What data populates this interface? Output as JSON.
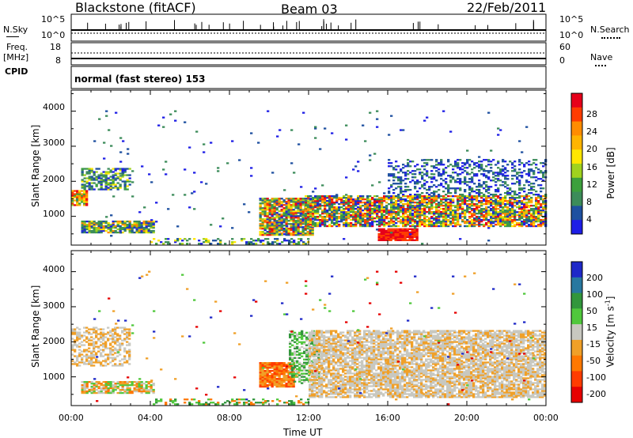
{
  "header": {
    "station": "Blackstone (fitACF)",
    "beam": "Beam 03",
    "date": "22/Feb/2011"
  },
  "summary_panels": {
    "nsky_label": "N.Sky",
    "nsky_ticks": [
      "10^5",
      "10^0"
    ],
    "nsearch_label": "N.Search",
    "nsearch_ticks": [
      "10^5",
      "10^0"
    ],
    "freq_label_top": "Freq.",
    "freq_label_bottom": "[MHz]",
    "freq_ticks": [
      "18",
      "8"
    ],
    "nave_label": "Nave",
    "nave_ticks": [
      "60",
      "0"
    ],
    "cpid_label": "CPID",
    "cpid_text": "normal (fast stereo) 153"
  },
  "power_colorbar": {
    "title": "Power [dB]",
    "labels": [
      "28",
      "24",
      "20",
      "16",
      "12",
      "8",
      "4"
    ],
    "colors": [
      "#e6001a",
      "#ff3c00",
      "#ff8c00",
      "#ffb400",
      "#ffe600",
      "#a0d21e",
      "#3ca03c",
      "#3c8c5a",
      "#1e50a0",
      "#1e1ee6"
    ]
  },
  "velocity_colorbar": {
    "title": "Velocity [m s",
    "title_sup": "-1",
    "title_end": "]",
    "labels": [
      "200",
      "100",
      "50",
      "15",
      "-15",
      "-50",
      "-100",
      "-200"
    ],
    "colors": [
      "#1e28c8",
      "#2878a0",
      "#32963c",
      "#50c83c",
      "#c8c8c0",
      "#f0a028",
      "#ff7800",
      "#ff3c00",
      "#e60000"
    ]
  },
  "chart_data": {
    "type": "heatmap",
    "title": "Blackstone (fitACF) Beam 03 22/Feb/2011",
    "xlabel": "Time UT",
    "ylabel": "Slant Range [km]",
    "xlim": [
      0,
      24
    ],
    "ylim": [
      180,
      4600
    ],
    "x_ticks": [
      "00:00",
      "04:00",
      "08:00",
      "12:00",
      "16:00",
      "20:00",
      "00:00"
    ],
    "y_ticks": [
      "1000",
      "2000",
      "3000",
      "4000"
    ],
    "panels": [
      {
        "name": "Power",
        "units": "dB",
        "regions": [
          {
            "t": [
              0.0,
              0.8
            ],
            "range": [
              1300,
              1750
            ],
            "value": "strong 16-28 dB"
          },
          {
            "t": [
              0.5,
              3.0
            ],
            "range": [
              1750,
              2350
            ],
            "value": "4-16 dB"
          },
          {
            "t": [
              0.5,
              4.2
            ],
            "range": [
              520,
              850
            ],
            "value": "4-24 dB"
          },
          {
            "t": [
              9.5,
              12.2
            ],
            "range": [
              450,
              1500
            ],
            "value": "8-24 dB"
          },
          {
            "t": [
              11.8,
              24.0
            ],
            "range": [
              700,
              1600
            ],
            "value": "16-28 dB band"
          },
          {
            "t": [
              15.5,
              17.5
            ],
            "range": [
              300,
              650
            ],
            "value": "28+ dB"
          },
          {
            "t": [
              16.0,
              24.0
            ],
            "range": [
              1600,
              2600
            ],
            "value": "4-12 dB"
          }
        ]
      },
      {
        "name": "Velocity",
        "units": "m s-1",
        "regions": [
          {
            "t": [
              0.0,
              3.0
            ],
            "range": [
              1300,
              2400
            ],
            "value": "-15 to 15"
          },
          {
            "t": [
              0.5,
              4.2
            ],
            "range": [
              520,
              850
            ],
            "value": "15 to 50 / -50"
          },
          {
            "t": [
              9.5,
              11.2
            ],
            "range": [
              700,
              1400
            ],
            "value": "-50 to -100"
          },
          {
            "t": [
              11.0,
              12.5
            ],
            "range": [
              800,
              2300
            ],
            "value": "15 to 50"
          },
          {
            "t": [
              12.0,
              24.0
            ],
            "range": [
              400,
              2300
            ],
            "value": "-15 to 15"
          }
        ]
      }
    ]
  }
}
